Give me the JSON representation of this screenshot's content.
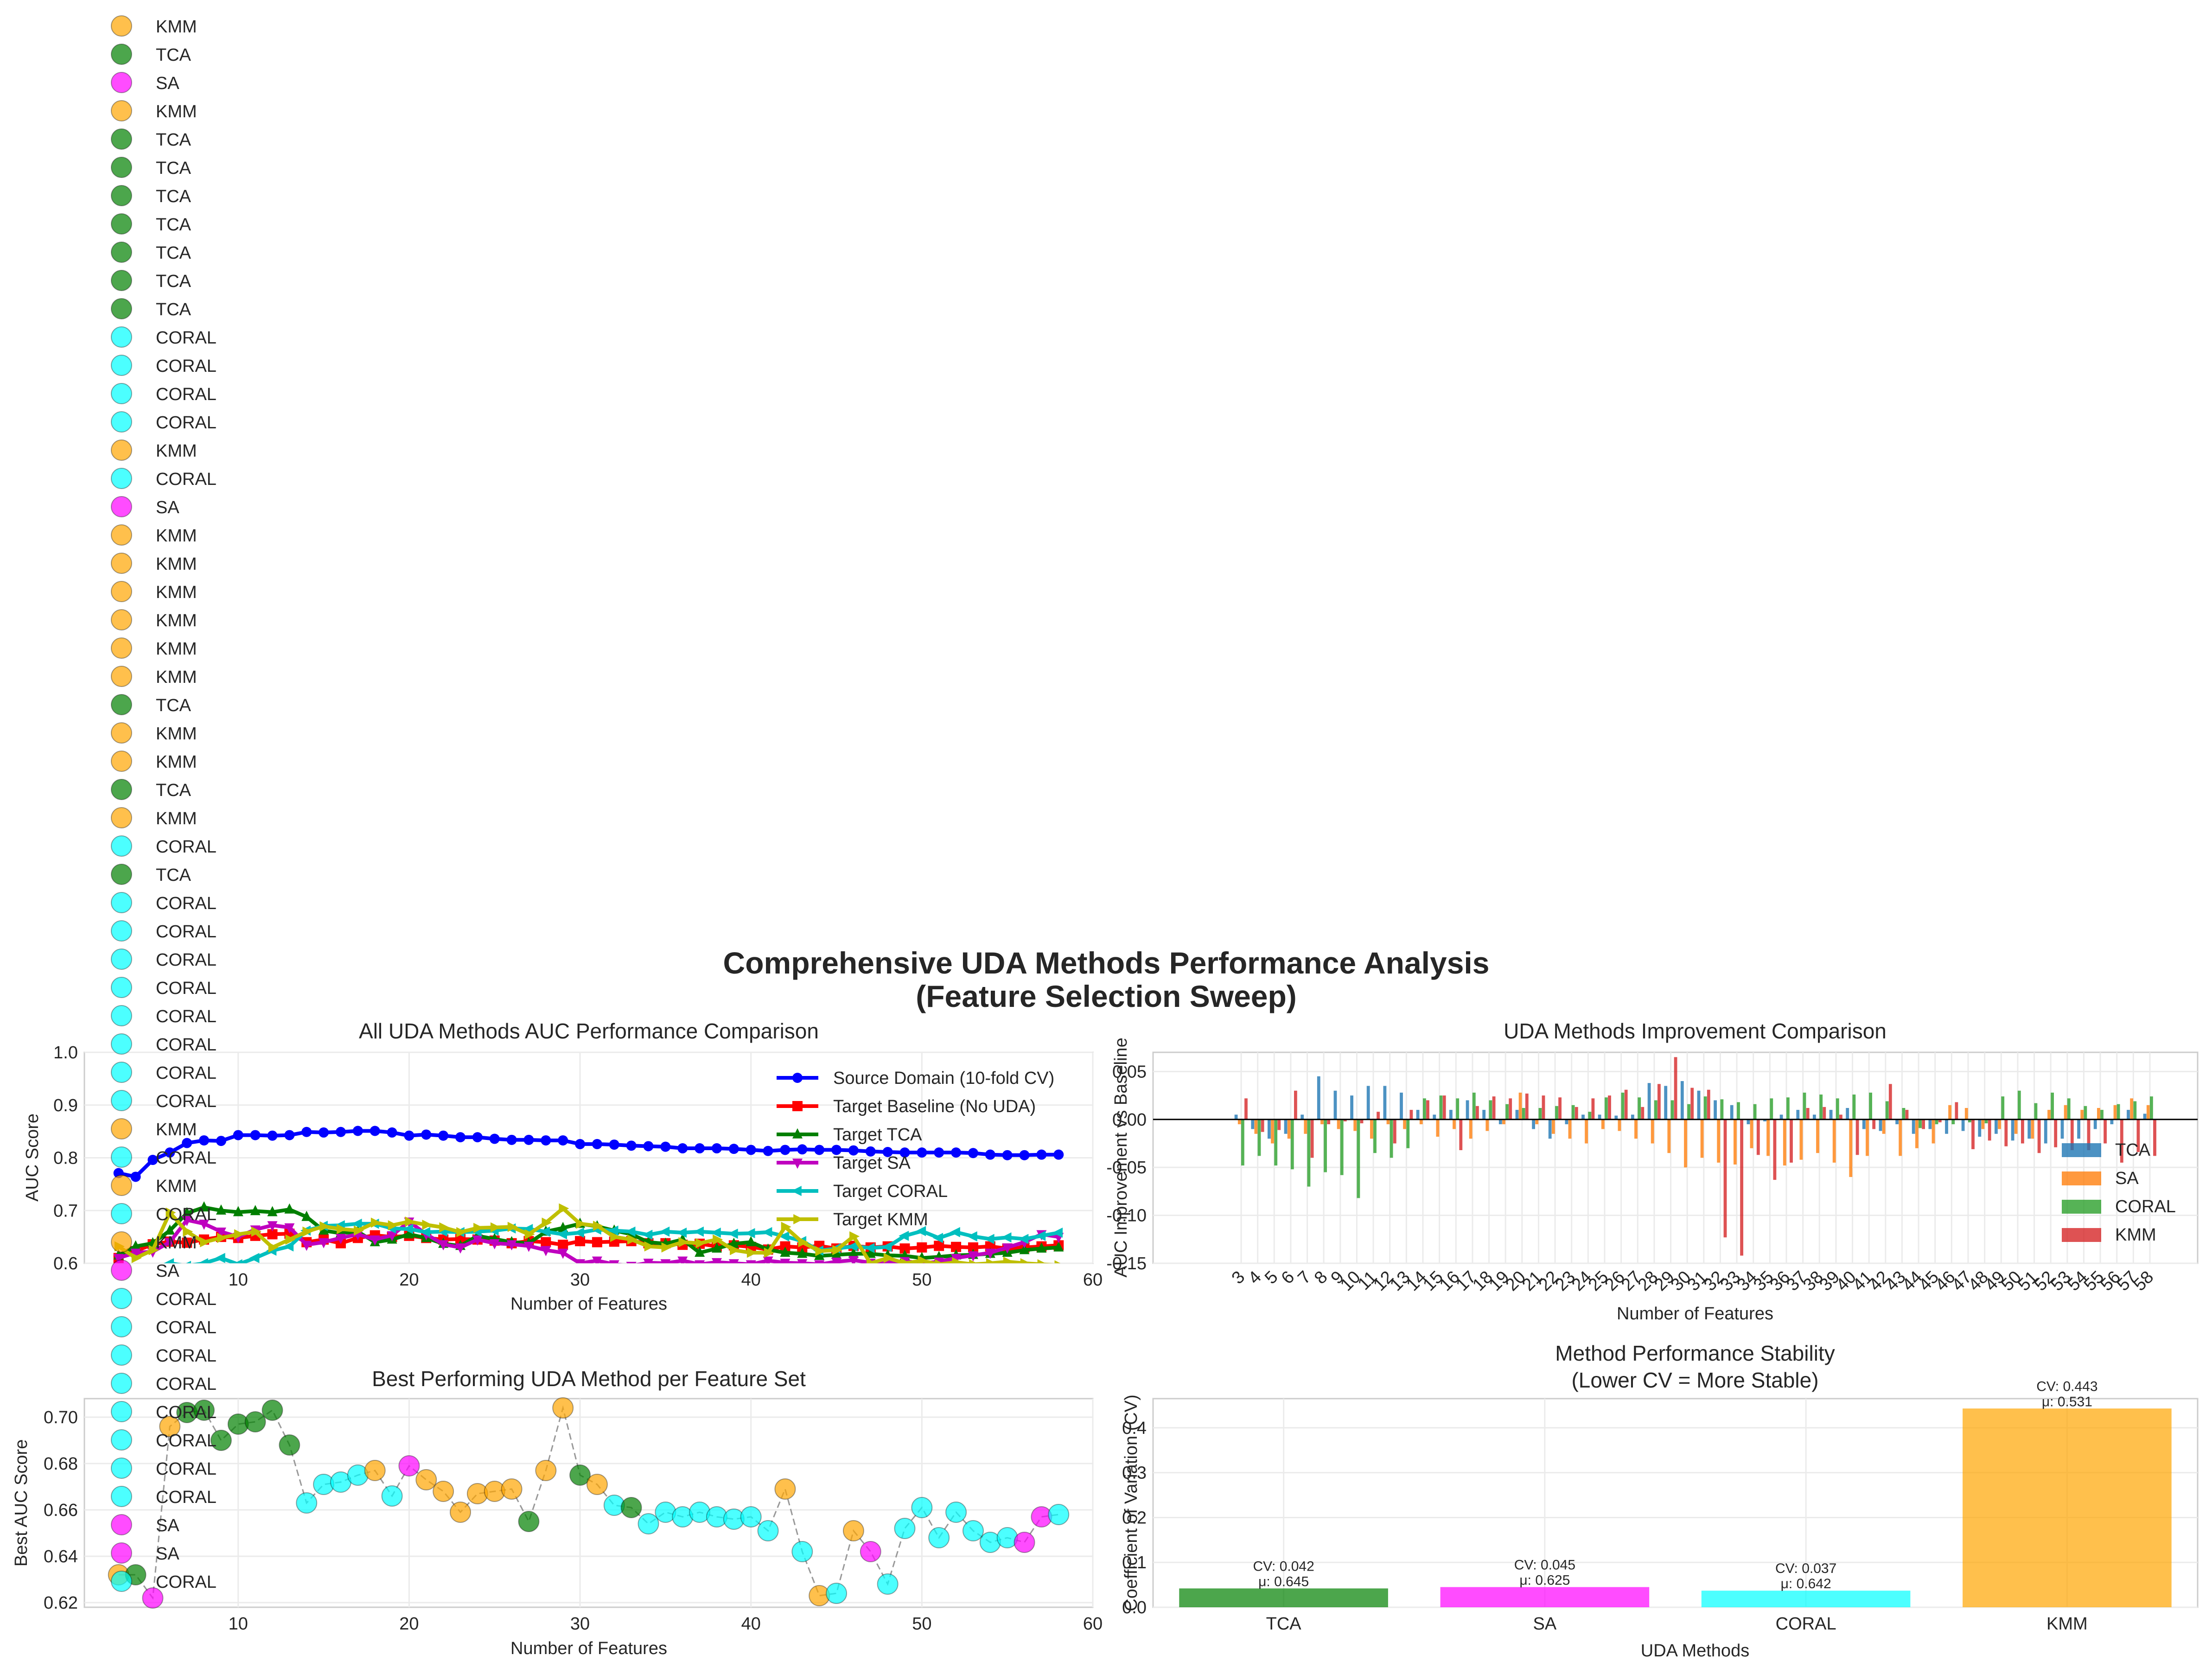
{
  "suptitle_line1": "Comprehensive UDA Methods Performance Analysis",
  "suptitle_line2": "(Feature Selection Sweep)",
  "colors": {
    "source": "#0000ff",
    "baseline": "#ff0000",
    "tca_line": "#007f00",
    "sa_line": "#bf00bf",
    "coral_line": "#00bfbf",
    "kmm_line": "#bfbf00",
    "TCA": "#008000",
    "SA": "#ff00ff",
    "CORAL": "#00ffff",
    "KMM": "#ffa500",
    "bar_tca": "#1f77b4",
    "bar_sa": "#ff7f0e",
    "bar_coral": "#2ca02c",
    "bar_kmm": "#d62728"
  },
  "chart_data": [
    {
      "id": "auc_comparison",
      "type": "line",
      "title": "All UDA Methods AUC Performance Comparison",
      "xlabel": "Number of Features",
      "ylabel": "AUC Score",
      "xlim": [
        1,
        60
      ],
      "ylim": [
        0.6,
        1.0
      ],
      "xticks": [
        10,
        20,
        30,
        40,
        50,
        60
      ],
      "yticks": [
        "0.6",
        "0.7",
        "0.8",
        "0.9",
        "1.0"
      ],
      "legend_position": "upper right",
      "x": [
        3,
        4,
        5,
        6,
        7,
        8,
        9,
        10,
        11,
        12,
        13,
        14,
        15,
        16,
        17,
        18,
        19,
        20,
        21,
        22,
        23,
        24,
        25,
        26,
        27,
        28,
        29,
        30,
        31,
        32,
        33,
        34,
        35,
        36,
        37,
        38,
        39,
        40,
        41,
        42,
        43,
        44,
        45,
        46,
        47,
        48,
        49,
        50,
        51,
        52,
        53,
        54,
        55,
        56,
        57,
        58
      ],
      "series": [
        {
          "name": "Source Domain (10-fold CV)",
          "key": "source",
          "marker": "circle",
          "values": [
            0.771,
            0.764,
            0.796,
            0.81,
            0.828,
            0.833,
            0.832,
            0.843,
            0.843,
            0.842,
            0.843,
            0.849,
            0.848,
            0.849,
            0.851,
            0.851,
            0.848,
            0.842,
            0.844,
            0.842,
            0.839,
            0.839,
            0.836,
            0.834,
            0.834,
            0.833,
            0.833,
            0.826,
            0.826,
            0.825,
            0.823,
            0.822,
            0.821,
            0.818,
            0.818,
            0.818,
            0.817,
            0.815,
            0.813,
            0.815,
            0.816,
            0.815,
            0.815,
            0.814,
            0.812,
            0.811,
            0.81,
            0.81,
            0.81,
            0.81,
            0.809,
            0.806,
            0.805,
            0.805,
            0.806,
            0.806
          ]
        },
        {
          "name": "Target Baseline (No UDA)",
          "key": "baseline",
          "marker": "square",
          "values": [
            0.61,
            0.623,
            0.636,
            0.641,
            0.639,
            0.645,
            0.65,
            0.648,
            0.652,
            0.655,
            0.656,
            0.64,
            0.645,
            0.638,
            0.648,
            0.653,
            0.65,
            0.652,
            0.648,
            0.645,
            0.646,
            0.645,
            0.643,
            0.638,
            0.642,
            0.64,
            0.635,
            0.642,
            0.64,
            0.641,
            0.642,
            0.638,
            0.638,
            0.635,
            0.637,
            0.632,
            0.634,
            0.631,
            0.626,
            0.632,
            0.63,
            0.633,
            0.628,
            0.633,
            0.63,
            0.632,
            0.628,
            0.63,
            0.633,
            0.631,
            0.63,
            0.632,
            0.628,
            0.63,
            0.632,
            0.634
          ]
        },
        {
          "name": "Target TCA",
          "key": "tca_line",
          "marker": "triangle-up",
          "values": [
            0.615,
            0.632,
            0.638,
            0.662,
            0.695,
            0.706,
            0.7,
            0.697,
            0.699,
            0.697,
            0.702,
            0.688,
            0.662,
            0.657,
            0.66,
            0.64,
            0.645,
            0.655,
            0.648,
            0.637,
            0.633,
            0.652,
            0.646,
            0.64,
            0.638,
            0.66,
            0.667,
            0.675,
            0.67,
            0.662,
            0.655,
            0.64,
            0.637,
            0.645,
            0.62,
            0.628,
            0.637,
            0.64,
            0.626,
            0.62,
            0.618,
            0.614,
            0.616,
            0.618,
            0.618,
            0.615,
            0.614,
            0.61,
            0.612,
            0.615,
            0.616,
            0.618,
            0.62,
            0.625,
            0.628,
            0.63
          ]
        },
        {
          "name": "Target SA",
          "key": "sa_line",
          "marker": "triangle-down",
          "values": [
            0.61,
            0.62,
            0.622,
            0.64,
            0.682,
            0.675,
            0.66,
            0.65,
            0.664,
            0.672,
            0.668,
            0.635,
            0.64,
            0.648,
            0.655,
            0.645,
            0.653,
            0.679,
            0.655,
            0.636,
            0.63,
            0.645,
            0.638,
            0.636,
            0.633,
            0.625,
            0.62,
            0.6,
            0.605,
            0.598,
            0.595,
            0.601,
            0.6,
            0.605,
            0.598,
            0.602,
            0.6,
            0.598,
            0.605,
            0.601,
            0.6,
            0.598,
            0.603,
            0.606,
            0.601,
            0.6,
            0.604,
            0.6,
            0.603,
            0.61,
            0.615,
            0.62,
            0.63,
            0.64,
            0.655,
            0.65
          ]
        },
        {
          "name": "Target CORAL",
          "key": "coral_line",
          "marker": "triangle-left",
          "values": [
            0.58,
            0.585,
            0.59,
            0.6,
            0.595,
            0.6,
            0.61,
            0.598,
            0.61,
            0.624,
            0.632,
            0.662,
            0.671,
            0.672,
            0.675,
            0.675,
            0.666,
            0.665,
            0.659,
            0.66,
            0.659,
            0.66,
            0.662,
            0.666,
            0.665,
            0.66,
            0.655,
            0.658,
            0.664,
            0.662,
            0.66,
            0.654,
            0.66,
            0.658,
            0.66,
            0.658,
            0.656,
            0.657,
            0.659,
            0.651,
            0.642,
            0.624,
            0.628,
            0.632,
            0.629,
            0.631,
            0.652,
            0.661,
            0.648,
            0.659,
            0.651,
            0.646,
            0.649,
            0.646,
            0.652,
            0.658
          ]
        },
        {
          "name": "Target KMM",
          "key": "kmm_line",
          "marker": "triangle-right",
          "values": [
            0.632,
            0.61,
            0.625,
            0.696,
            0.66,
            0.64,
            0.648,
            0.655,
            0.66,
            0.63,
            0.645,
            0.66,
            0.67,
            0.665,
            0.662,
            0.677,
            0.672,
            0.679,
            0.673,
            0.668,
            0.659,
            0.667,
            0.668,
            0.669,
            0.655,
            0.677,
            0.704,
            0.675,
            0.671,
            0.65,
            0.645,
            0.632,
            0.63,
            0.64,
            0.638,
            0.645,
            0.625,
            0.62,
            0.62,
            0.669,
            0.64,
            0.623,
            0.625,
            0.651,
            0.6,
            0.61,
            0.6,
            0.605,
            0.598,
            0.602,
            0.598,
            0.6,
            0.603,
            0.6,
            0.598,
            0.596
          ]
        }
      ]
    },
    {
      "id": "improvement",
      "type": "bar",
      "title": "UDA Methods Improvement Comparison",
      "xlabel": "Number of Features",
      "ylabel": "AUC Improvement vs Baseline",
      "ylim": [
        -0.15,
        0.07
      ],
      "yticks": [
        "0.05",
        "0.00",
        "-0.05",
        "-0.10",
        "-0.15"
      ],
      "legend_position": "lower right",
      "categories": [
        "3",
        "4",
        "5",
        "6",
        "7",
        "8",
        "9",
        "10",
        "11",
        "12",
        "13",
        "14",
        "15",
        "16",
        "17",
        "18",
        "19",
        "20",
        "21",
        "22",
        "23",
        "24",
        "25",
        "26",
        "27",
        "28",
        "29",
        "30",
        "31",
        "32",
        "33",
        "34",
        "35",
        "36",
        "37",
        "38",
        "39",
        "40",
        "41",
        "42",
        "43",
        "44",
        "45",
        "46",
        "47",
        "48",
        "49",
        "50",
        "51",
        "52",
        "53",
        "54",
        "55",
        "56",
        "57",
        "58"
      ],
      "series": [
        {
          "name": "TCA",
          "key": "bar_tca",
          "values": [
            0.005,
            -0.01,
            -0.02,
            -0.015,
            0.005,
            0.045,
            0.03,
            0.025,
            0.035,
            0.035,
            0.028,
            0.01,
            0.005,
            0.01,
            0.02,
            0.01,
            -0.005,
            0.01,
            -0.01,
            -0.02,
            -0.005,
            0.005,
            0.005,
            0.004,
            0.005,
            0.038,
            0.035,
            0.04,
            0.03,
            0.02,
            0.015,
            -0.005,
            -0.002,
            0.005,
            0.01,
            0.005,
            0.01,
            0.012,
            -0.01,
            -0.012,
            -0.005,
            -0.015,
            -0.01,
            -0.015,
            -0.012,
            -0.018,
            -0.015,
            -0.022,
            -0.02,
            -0.025,
            -0.02,
            -0.02,
            -0.01,
            -0.005,
            0.01,
            0.006
          ]
        },
        {
          "name": "SA",
          "key": "bar_sa",
          "values": [
            -0.005,
            -0.015,
            -0.025,
            -0.02,
            -0.015,
            -0.005,
            -0.01,
            -0.012,
            -0.02,
            -0.005,
            -0.01,
            -0.005,
            -0.018,
            -0.01,
            -0.02,
            -0.012,
            -0.005,
            0.028,
            -0.005,
            -0.015,
            -0.02,
            -0.025,
            -0.01,
            -0.012,
            -0.02,
            -0.025,
            -0.035,
            -0.05,
            -0.04,
            -0.045,
            -0.047,
            -0.03,
            -0.038,
            -0.048,
            -0.042,
            -0.035,
            -0.045,
            -0.06,
            -0.038,
            -0.015,
            -0.038,
            -0.03,
            -0.025,
            0.015,
            0.012,
            -0.01,
            -0.01,
            -0.015,
            -0.02,
            0.01,
            0.015,
            0.01,
            0.012,
            0.015,
            0.022,
            0.015
          ]
        },
        {
          "name": "CORAL",
          "key": "bar_coral",
          "values": [
            -0.048,
            -0.038,
            -0.048,
            -0.052,
            -0.07,
            -0.055,
            -0.058,
            -0.082,
            -0.035,
            -0.04,
            -0.03,
            0.022,
            0.025,
            0.022,
            0.028,
            0.02,
            0.016,
            0.012,
            0.012,
            0.014,
            0.015,
            0.008,
            0.023,
            0.028,
            0.023,
            0.02,
            0.02,
            0.016,
            0.024,
            0.021,
            0.018,
            0.016,
            0.022,
            0.023,
            0.028,
            0.026,
            0.022,
            0.026,
            0.028,
            0.019,
            0.012,
            -0.009,
            -0.005,
            -0.005,
            -0.003,
            -0.004,
            0.024,
            0.03,
            0.017,
            0.028,
            0.022,
            0.014,
            0.01,
            0.016,
            0.019,
            0.024
          ]
        },
        {
          "name": "KMM",
          "key": "bar_kmm",
          "values": [
            0.022,
            -0.013,
            -0.011,
            0.03,
            -0.04,
            -0.005,
            -0.002,
            -0.004,
            0.008,
            -0.025,
            0.01,
            0.02,
            0.025,
            -0.032,
            0.014,
            0.024,
            0.022,
            0.027,
            0.025,
            0.023,
            0.013,
            0.022,
            0.025,
            0.031,
            0.013,
            0.037,
            0.065,
            0.033,
            0.031,
            -0.123,
            -0.142,
            -0.037,
            -0.063,
            -0.045,
            0.012,
            0.013,
            0.005,
            -0.037,
            -0.01,
            0.037,
            0.01,
            -0.01,
            -0.003,
            0.018,
            -0.031,
            -0.022,
            -0.028,
            -0.025,
            -0.035,
            -0.029,
            -0.032,
            -0.032,
            -0.025,
            -0.045,
            -0.034,
            -0.038
          ]
        }
      ]
    },
    {
      "id": "best_method",
      "type": "scatter",
      "title": "Best Performing UDA Method per Feature Set",
      "xlabel": "Number of Features",
      "ylabel": "Best AUC Score",
      "xlim": [
        1,
        60
      ],
      "ylim": [
        0.618,
        0.708
      ],
      "xticks": [
        10,
        20,
        30,
        40,
        50,
        60
      ],
      "yticks": [
        "0.62",
        "0.64",
        "0.66",
        "0.68",
        "0.70"
      ],
      "x": [
        3,
        4,
        5,
        6,
        7,
        8,
        9,
        10,
        11,
        12,
        13,
        14,
        15,
        16,
        17,
        18,
        19,
        20,
        21,
        22,
        23,
        24,
        25,
        26,
        27,
        28,
        29,
        30,
        31,
        32,
        33,
        34,
        35,
        36,
        37,
        38,
        39,
        40,
        41,
        42,
        43,
        44,
        45,
        46,
        47,
        48,
        49,
        50,
        51,
        52,
        53,
        54,
        55,
        56,
        57,
        58
      ],
      "y": [
        0.632,
        0.632,
        0.622,
        0.696,
        0.702,
        0.703,
        0.69,
        0.697,
        0.698,
        0.703,
        0.688,
        0.663,
        0.671,
        0.672,
        0.675,
        0.677,
        0.666,
        0.679,
        0.673,
        0.668,
        0.659,
        0.667,
        0.668,
        0.669,
        0.655,
        0.677,
        0.704,
        0.675,
        0.671,
        0.662,
        0.661,
        0.654,
        0.659,
        0.657,
        0.659,
        0.657,
        0.656,
        0.657,
        0.651,
        0.669,
        0.642,
        0.623,
        0.624,
        0.651,
        0.642,
        0.628,
        0.652,
        0.661,
        0.648,
        0.659,
        0.651,
        0.646,
        0.648,
        0.646,
        0.657,
        0.658
      ],
      "methods": [
        "KMM",
        "TCA",
        "SA",
        "KMM",
        "TCA",
        "TCA",
        "TCA",
        "TCA",
        "TCA",
        "TCA",
        "TCA",
        "CORAL",
        "CORAL",
        "CORAL",
        "CORAL",
        "KMM",
        "CORAL",
        "SA",
        "KMM",
        "KMM",
        "KMM",
        "KMM",
        "KMM",
        "KMM",
        "TCA",
        "KMM",
        "KMM",
        "TCA",
        "KMM",
        "CORAL",
        "TCA",
        "CORAL",
        "CORAL",
        "CORAL",
        "CORAL",
        "CORAL",
        "CORAL",
        "CORAL",
        "CORAL",
        "KMM",
        "CORAL",
        "KMM",
        "CORAL",
        "KMM",
        "SA",
        "CORAL",
        "CORAL",
        "CORAL",
        "CORAL",
        "CORAL",
        "CORAL",
        "CORAL",
        "CORAL",
        "SA",
        "SA",
        "CORAL"
      ],
      "legend_position": "upper left"
    },
    {
      "id": "stability",
      "type": "bar",
      "title_line1": "Method Performance Stability",
      "title_line2": "(Lower CV = More Stable)",
      "xlabel": "UDA Methods",
      "ylabel": "Coefficient of Variation (CV)",
      "ylim": [
        0,
        0.465
      ],
      "yticks": [
        "0.0",
        "0.1",
        "0.2",
        "0.3",
        "0.4"
      ],
      "categories": [
        "TCA",
        "SA",
        "CORAL",
        "KMM"
      ],
      "values": [
        0.042,
        0.045,
        0.037,
        0.443
      ],
      "labels_cv": [
        "CV: 0.042",
        "CV: 0.045",
        "CV: 0.037",
        "CV: 0.443"
      ],
      "labels_mu": [
        "μ: 0.645",
        "μ: 0.625",
        "μ: 0.642",
        "μ: 0.531"
      ]
    }
  ]
}
